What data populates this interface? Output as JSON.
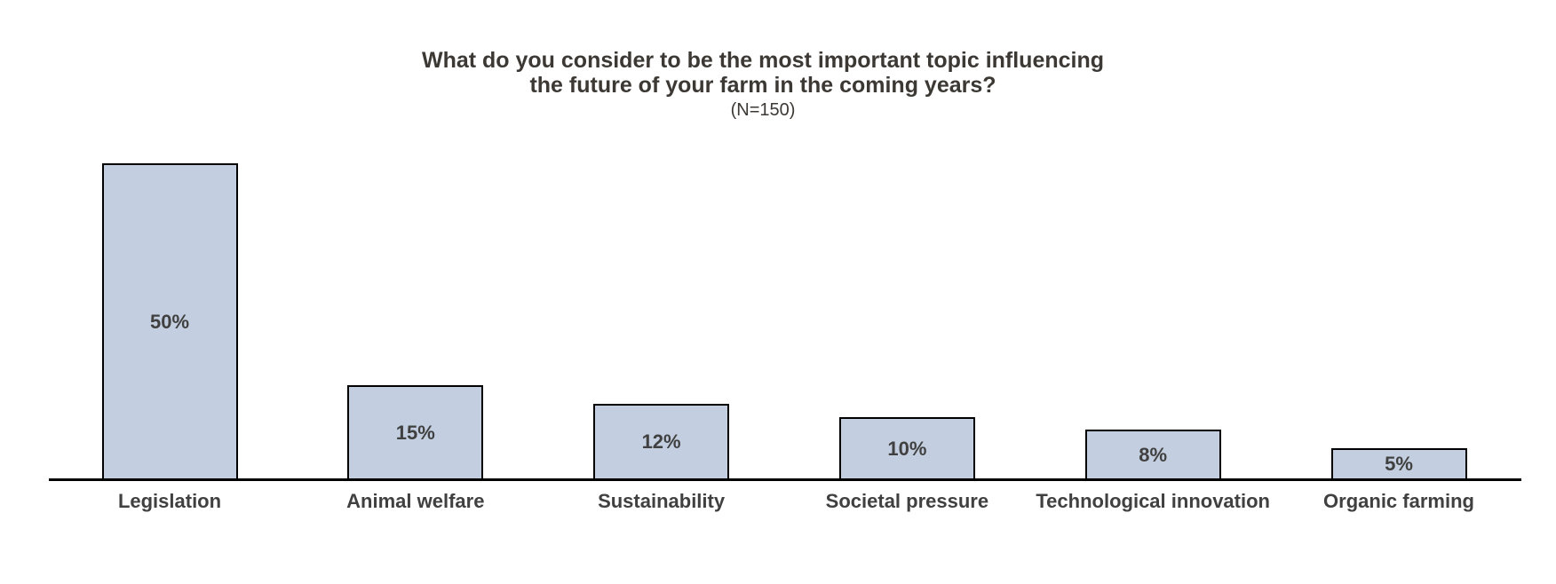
{
  "chart_data": {
    "type": "bar",
    "title": "What do you consider to be the most important topic influencing the future of your farm in the coming years?",
    "title_lines": [
      "What do you consider to be the most important topic influencing",
      "the future of your farm in the coming years?"
    ],
    "subtitle": "(N=150)",
    "categories": [
      "Legislation",
      "Animal welfare",
      "Sustainability",
      "Societal pressure",
      "Technological innovation",
      "Organic farming"
    ],
    "values": [
      50,
      15,
      12,
      10,
      8,
      5
    ],
    "value_labels": [
      "50%",
      "15%",
      "12%",
      "10%",
      "8%",
      "5%"
    ],
    "xlabel": "",
    "ylabel": "",
    "ylim": [
      0,
      53
    ],
    "grid": false,
    "legend": false,
    "colors": {
      "bar_fill": "#C3CFE0",
      "bar_border": "#000000",
      "label_color": "#404040",
      "title_color": "#3C3834",
      "axis_color": "#000000",
      "background": "#FFFFFF"
    }
  }
}
